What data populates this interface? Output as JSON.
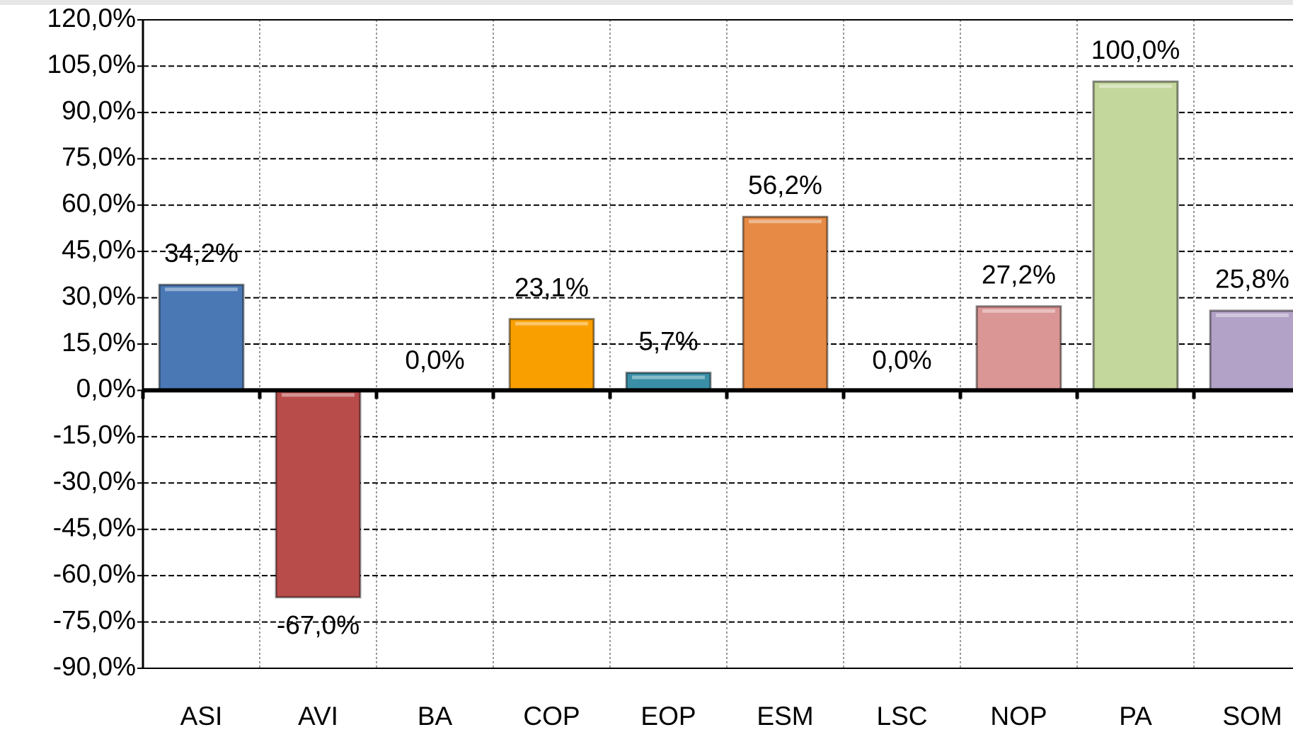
{
  "chart_data": {
    "type": "bar",
    "categories": [
      "ASI",
      "AVI",
      "BA",
      "COP",
      "EOP",
      "ESM",
      "LSC",
      "NOP",
      "PA",
      "SOM"
    ],
    "values": [
      34.2,
      -67.0,
      0.0,
      23.1,
      5.7,
      56.2,
      0.0,
      27.2,
      100.0,
      25.8
    ],
    "value_labels": [
      "34,2%",
      "-67,0%",
      "0,0%",
      "23,1%",
      "5,7%",
      "56,2%",
      "0,0%",
      "27,2%",
      "100,0%",
      "25,8%"
    ],
    "colors": [
      "#4a78b5",
      "#b84c4a",
      null,
      "#f9a000",
      "#3a8fa6",
      "#e68a45",
      null,
      "#da9694",
      "#c3d69b",
      "#b3a2c7"
    ],
    "ylim": [
      -90,
      120
    ],
    "yticks": [
      {
        "value": -90,
        "label": "-90,0%"
      },
      {
        "value": -75,
        "label": "-75,0%"
      },
      {
        "value": -60,
        "label": "-60,0%"
      },
      {
        "value": -45,
        "label": "-45,0%"
      },
      {
        "value": -30,
        "label": "-30,0%"
      },
      {
        "value": -15,
        "label": "-15,0%"
      },
      {
        "value": 0,
        "label": "0,0%"
      },
      {
        "value": 15,
        "label": "15,0%"
      },
      {
        "value": 30,
        "label": "30,0%"
      },
      {
        "value": 45,
        "label": "45,0%"
      },
      {
        "value": 60,
        "label": "60,0%"
      },
      {
        "value": 75,
        "label": "75,0%"
      },
      {
        "value": 90,
        "label": "90,0%"
      },
      {
        "value": 105,
        "label": "105,0%"
      },
      {
        "value": 120,
        "label": "120,0%"
      }
    ],
    "grid": true
  }
}
